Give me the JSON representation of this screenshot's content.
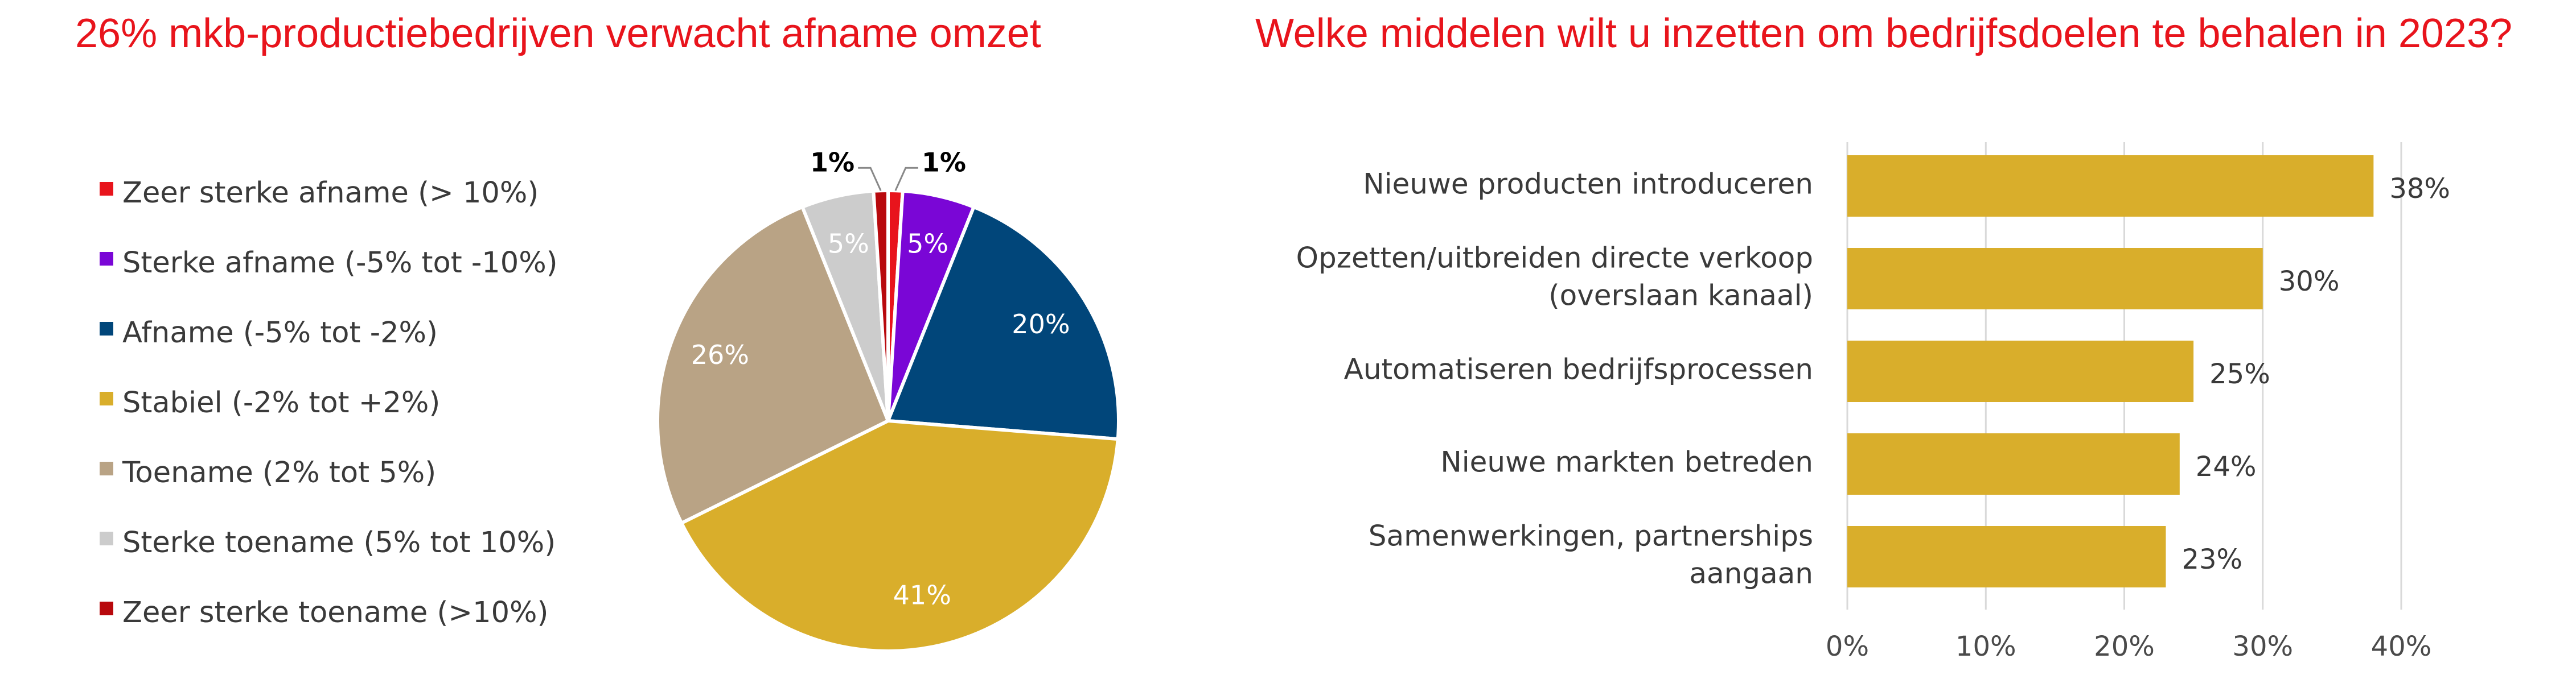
{
  "chart_data": [
    {
      "type": "pie",
      "title": "26% mkb-productiebedrijven verwacht afname omzet",
      "legend_position": "left",
      "slices": [
        {
          "label": "Zeer sterke afname (> 10%)",
          "value": 1,
          "color": "#e8141c",
          "display": "1%"
        },
        {
          "label": "Sterke afname (-5% tot -10%)",
          "value": 5,
          "color": "#7a06d6",
          "display": "5%"
        },
        {
          "label": "Afname (-5% tot -2%)",
          "value": 20,
          "color": "#01467a",
          "display": "20%"
        },
        {
          "label": "Stabiel (-2% tot +2%)",
          "value": 41,
          "color": "#d9ae2b",
          "display": "41%"
        },
        {
          "label": "Toename (2% tot 5%)",
          "value": 26,
          "color": "#b9a385",
          "display": "26%"
        },
        {
          "label": "Sterke toename (5% tot 10%)",
          "value": 5,
          "color": "#cccccc",
          "display": "5%"
        },
        {
          "label": "Zeer sterke toename (>10%)",
          "value": 1,
          "color": "#b8090d",
          "display": "1%"
        }
      ]
    },
    {
      "type": "bar",
      "orientation": "horizontal",
      "title": "Welke middelen wilt u inzetten om bedrijfsdoelen te behalen in 2023?",
      "bar_color": "#d9ae2b",
      "xlim": [
        0,
        40
      ],
      "xticks": [
        "0%",
        "10%",
        "20%",
        "30%",
        "40%"
      ],
      "grid": true,
      "categories": [
        [
          "Nieuwe producten introduceren"
        ],
        [
          "Opzetten/uitbreiden directe verkoop",
          "(overslaan kanaal)"
        ],
        [
          "Automatiseren bedrijfsprocessen"
        ],
        [
          "Nieuwe markten betreden"
        ],
        [
          "Samenwerkingen, partnerships",
          "aangaan"
        ]
      ],
      "values": [
        38,
        30,
        25,
        24,
        23
      ],
      "value_labels": [
        "38%",
        "30%",
        "25%",
        "24%",
        "23%"
      ]
    }
  ]
}
